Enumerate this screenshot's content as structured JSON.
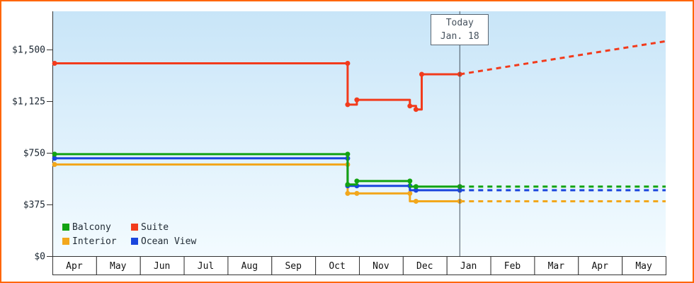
{
  "chart_data": {
    "type": "line",
    "description": "Cruise cabin price history per category with forecast after today",
    "grid": false,
    "legend_position": "bottom-left",
    "y_axis": {
      "ticks": [
        {
          "label": "$1,500",
          "value": 1500
        },
        {
          "label": "$1,125",
          "value": 1125
        },
        {
          "label": "$750",
          "value": 750
        },
        {
          "label": "$375",
          "value": 375
        },
        {
          "label": "$0",
          "value": 0
        }
      ],
      "range": [
        0,
        1777
      ]
    },
    "x_axis": {
      "months": [
        "Apr",
        "May",
        "Jun",
        "Jul",
        "Aug",
        "Sep",
        "Oct",
        "Nov",
        "Dec",
        "Jan",
        "Feb",
        "Mar",
        "Apr",
        "May"
      ]
    },
    "today": {
      "line1": "Today",
      "line2": "Jan. 18",
      "x": 9.3
    },
    "series": [
      {
        "name": "Balcony",
        "color": "#12a312",
        "solid": [
          [
            0.05,
            740
          ],
          [
            6.74,
            740
          ],
          [
            6.74,
            520
          ],
          [
            6.95,
            520
          ],
          [
            6.95,
            545
          ],
          [
            8.16,
            545
          ],
          [
            8.16,
            505
          ],
          [
            9.3,
            505
          ]
        ],
        "dashed": [
          [
            9.3,
            505
          ],
          [
            14,
            505
          ]
        ],
        "markers": [
          [
            0.05,
            740
          ],
          [
            6.74,
            740
          ],
          [
            6.74,
            520
          ],
          [
            6.95,
            545
          ],
          [
            8.16,
            545
          ],
          [
            8.3,
            505
          ],
          [
            9.3,
            505
          ]
        ]
      },
      {
        "name": "Suite",
        "color": "#f23b1c",
        "solid": [
          [
            0.05,
            1400
          ],
          [
            6.74,
            1400
          ],
          [
            6.74,
            1100
          ],
          [
            6.95,
            1100
          ],
          [
            6.95,
            1135
          ],
          [
            8.16,
            1135
          ],
          [
            8.16,
            1090
          ],
          [
            8.3,
            1090
          ],
          [
            8.3,
            1065
          ],
          [
            8.43,
            1065
          ],
          [
            8.43,
            1320
          ],
          [
            9.3,
            1320
          ]
        ],
        "dashed": [
          [
            9.3,
            1320
          ],
          [
            14,
            1560
          ]
        ],
        "markers": [
          [
            0.05,
            1400
          ],
          [
            6.74,
            1400
          ],
          [
            6.74,
            1100
          ],
          [
            6.95,
            1135
          ],
          [
            8.16,
            1090
          ],
          [
            8.3,
            1065
          ],
          [
            8.43,
            1320
          ],
          [
            9.3,
            1320
          ]
        ]
      },
      {
        "name": "Interior",
        "color": "#f2a71c",
        "solid": [
          [
            0.05,
            665
          ],
          [
            6.74,
            665
          ],
          [
            6.74,
            455
          ],
          [
            8.16,
            455
          ],
          [
            8.16,
            398
          ],
          [
            9.3,
            398
          ]
        ],
        "dashed": [
          [
            9.3,
            398
          ],
          [
            14,
            398
          ]
        ],
        "markers": [
          [
            0.05,
            665
          ],
          [
            6.74,
            665
          ],
          [
            6.74,
            455
          ],
          [
            6.95,
            455
          ],
          [
            8.16,
            455
          ],
          [
            8.3,
            398
          ],
          [
            9.3,
            398
          ]
        ]
      },
      {
        "name": "Ocean View",
        "color": "#1a46dd",
        "solid": [
          [
            0.05,
            710
          ],
          [
            6.74,
            710
          ],
          [
            6.74,
            510
          ],
          [
            8.16,
            510
          ],
          [
            8.16,
            478
          ],
          [
            9.3,
            478
          ]
        ],
        "dashed": [
          [
            9.3,
            478
          ],
          [
            14,
            478
          ]
        ],
        "markers": [
          [
            0.05,
            710
          ],
          [
            6.74,
            710
          ],
          [
            6.74,
            510
          ],
          [
            6.95,
            510
          ],
          [
            8.16,
            510
          ],
          [
            8.3,
            478
          ],
          [
            9.3,
            478
          ]
        ]
      }
    ]
  },
  "colors": {
    "frame_border": "#ff6600",
    "plot_gradient_top": "#c8e5f8",
    "plot_gradient_bottom": "#f3fbff",
    "axis": "#333333",
    "axis_text": "#1a2530",
    "today_line": "#46525e"
  }
}
